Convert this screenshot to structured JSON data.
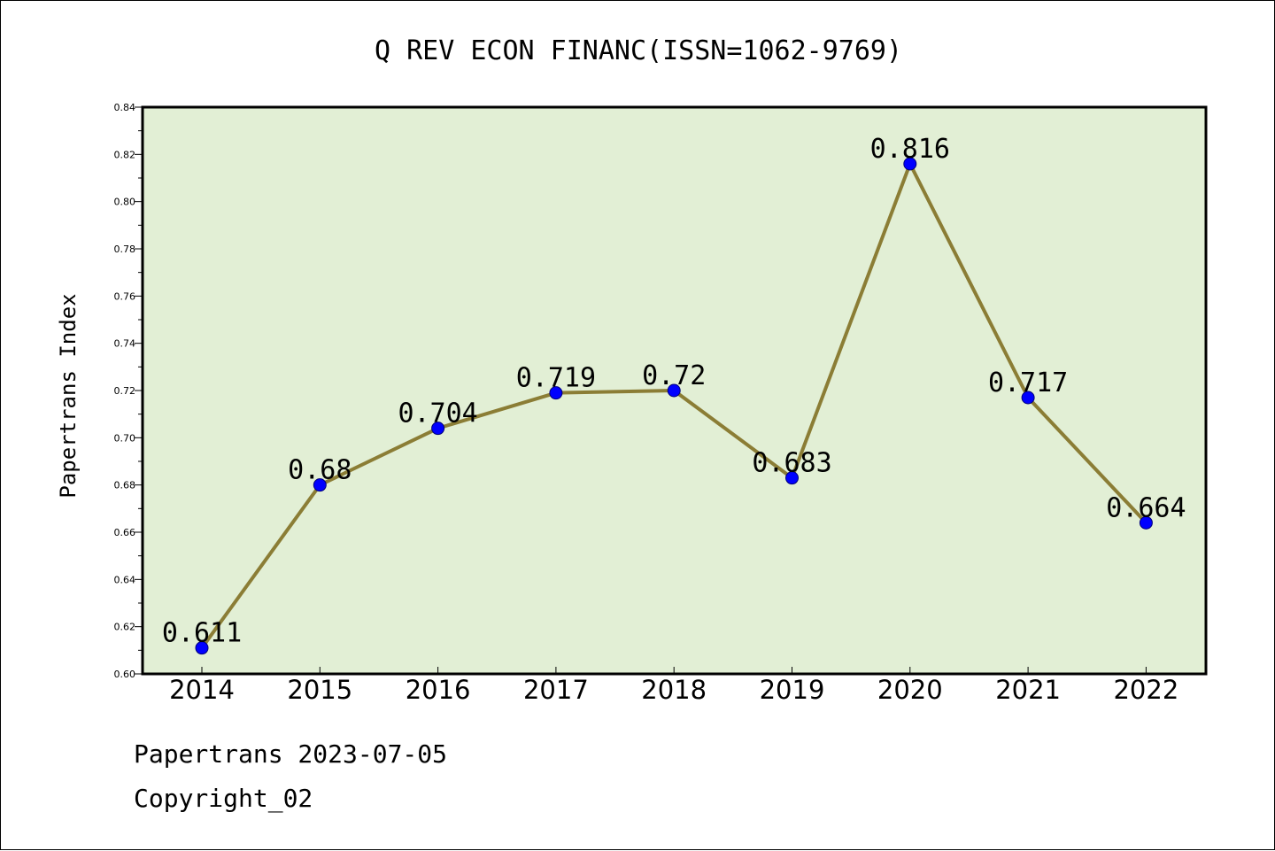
{
  "chart_data": {
    "type": "line",
    "title": "Q REV ECON FINANC(ISSN=1062-9769)",
    "xlabel": "",
    "ylabel": "Papertrans Index",
    "categories": [
      "2014",
      "2015",
      "2016",
      "2017",
      "2018",
      "2019",
      "2020",
      "2021",
      "2022"
    ],
    "series": [
      {
        "values": [
          0.611,
          0.68,
          0.704,
          0.719,
          0.72,
          0.683,
          0.816,
          0.717,
          0.664
        ],
        "data_labels": [
          "0.611",
          "0.68",
          "0.704",
          "0.719",
          "0.72",
          "0.683",
          "0.816",
          "0.717",
          "0.664"
        ],
        "line_color": "#8b7d35",
        "marker_color": "#0000ff"
      }
    ],
    "ylim": [
      0.6,
      0.84
    ],
    "yticks": [
      0.6,
      0.62,
      0.64,
      0.66,
      0.68,
      0.7,
      0.72,
      0.74,
      0.76,
      0.78,
      0.8,
      0.82,
      0.84
    ],
    "ytick_labels": [
      "0.60",
      "0.62",
      "0.64",
      "0.66",
      "0.68",
      "0.70",
      "0.72",
      "0.74",
      "0.76",
      "0.78",
      "0.80",
      "0.82",
      "0.84"
    ],
    "grid": false,
    "plot_background": "#e2efd5"
  },
  "footer": {
    "source": "Papertrans 2023-07-05",
    "copyright": "Copyright_02"
  }
}
